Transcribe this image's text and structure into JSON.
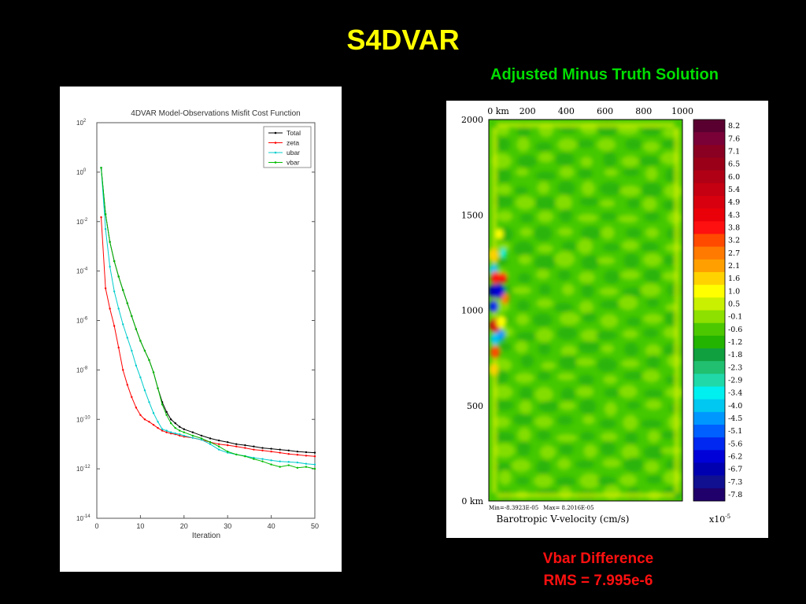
{
  "slide_title": "S4DVAR",
  "right_heading": "Adjusted Minus Truth Solution",
  "caption_line1": "Vbar Difference",
  "caption_line2": "RMS = 7.995e-6",
  "colors": {
    "background": "#000000",
    "title": "#ffff00",
    "heading": "#00dd00",
    "caption": "#ff1010"
  },
  "chart_data": [
    {
      "type": "line",
      "title": "4DVAR Model-Observations Misfit Cost Function",
      "xlabel": "Iteration",
      "ylabel": "",
      "yscale": "log",
      "xlim": [
        0,
        50
      ],
      "ylim": [
        1e-14,
        100.0
      ],
      "x_ticks": [
        "0",
        "10",
        "20",
        "30",
        "40",
        "50"
      ],
      "y_ticks": [
        "10-14",
        "10-12",
        "10-10",
        "10-8",
        "10-6",
        "10-4",
        "10-2",
        "100",
        "102"
      ],
      "legend_position": "top-right",
      "series": [
        {
          "name": "Total",
          "color": "#000000",
          "x": [
            1,
            2,
            3,
            4,
            5,
            6,
            7,
            8,
            9,
            10,
            11,
            12,
            13,
            14,
            15,
            16,
            17,
            18,
            19,
            20,
            22,
            24,
            26,
            28,
            30,
            32,
            34,
            36,
            38,
            40,
            42,
            44,
            46,
            48,
            50
          ],
          "y": [
            1.5,
            0.02,
            0.0015,
            0.00025,
            6e-05,
            1.7e-05,
            5e-06,
            1.5e-06,
            4.5e-07,
            1.5e-07,
            6e-08,
            2.5e-08,
            8e-09,
            1.8e-09,
            5e-10,
            2e-10,
            1e-10,
            7e-11,
            5e-11,
            4e-11,
            3e-11,
            2.2e-11,
            1.7e-11,
            1.4e-11,
            1.2e-11,
            1e-11,
            9e-12,
            8e-12,
            7e-12,
            6.5e-12,
            6e-12,
            5.5e-12,
            5e-12,
            4.7e-12,
            4.5e-12
          ]
        },
        {
          "name": "zeta",
          "color": "#ff0000",
          "x": [
            1,
            2,
            3,
            4,
            5,
            6,
            7,
            8,
            9,
            10,
            11,
            12,
            13,
            14,
            15,
            16,
            17,
            18,
            19,
            20,
            22,
            24,
            26,
            28,
            30,
            32,
            34,
            36,
            38,
            40,
            42,
            44,
            46,
            48,
            50
          ],
          "y": [
            0.015,
            2e-05,
            3e-06,
            6e-07,
            8e-08,
            1e-08,
            2.5e-09,
            8e-10,
            3e-10,
            1.5e-10,
            1e-10,
            8e-11,
            6e-11,
            4.5e-11,
            3.5e-11,
            3e-11,
            2.7e-11,
            2.5e-11,
            2.2e-11,
            2e-11,
            1.8e-11,
            1.5e-11,
            1.2e-11,
            1e-11,
            9e-12,
            8e-12,
            7e-12,
            6e-12,
            5.5e-12,
            5e-12,
            4.5e-12,
            4e-12,
            3.7e-12,
            3.4e-12,
            3.2e-12
          ]
        },
        {
          "name": "ubar",
          "color": "#00cccc",
          "x": [
            1,
            2,
            3,
            4,
            5,
            6,
            7,
            8,
            9,
            10,
            11,
            12,
            13,
            14,
            15,
            16,
            17,
            18,
            19,
            20,
            22,
            24,
            26,
            28,
            30,
            32,
            34,
            36,
            38,
            40,
            42,
            44,
            46,
            48,
            50
          ],
          "y": [
            1.5,
            0.005,
            0.00015,
            1.5e-05,
            3e-06,
            7e-07,
            2e-07,
            6e-08,
            1.5e-08,
            5e-09,
            1.5e-09,
            5e-10,
            1.8e-10,
            8e-11,
            4e-11,
            3.5e-11,
            3e-11,
            2.7e-11,
            2.5e-11,
            2.2e-11,
            1.8e-11,
            1.5e-11,
            1e-11,
            6e-12,
            4.5e-12,
            3.8e-12,
            3.3e-12,
            2.8e-12,
            2.5e-12,
            2.2e-12,
            2e-12,
            1.9e-12,
            1.8e-12,
            1.6e-12,
            1.5e-12
          ]
        },
        {
          "name": "vbar",
          "color": "#00bb00",
          "x": [
            1,
            2,
            3,
            4,
            5,
            6,
            7,
            8,
            9,
            10,
            11,
            12,
            13,
            14,
            15,
            16,
            17,
            18,
            19,
            20,
            22,
            24,
            26,
            28,
            30,
            32,
            34,
            36,
            38,
            40,
            42,
            44,
            46,
            48,
            50
          ],
          "y": [
            1.5,
            0.02,
            0.0015,
            0.00025,
            6e-05,
            1.7e-05,
            5e-06,
            1.5e-06,
            4.5e-07,
            1.5e-07,
            6e-08,
            2.5e-08,
            8e-09,
            1.8e-09,
            4e-10,
            1.5e-10,
            7e-11,
            4.5e-11,
            3.5e-11,
            3e-11,
            2.2e-11,
            1.7e-11,
            1.2e-11,
            8e-12,
            5e-12,
            3.8e-12,
            3.2e-12,
            2.5e-12,
            2e-12,
            1.5e-12,
            1.2e-12,
            1.4e-12,
            1.1e-12,
            1.2e-12,
            1e-12
          ]
        }
      ]
    },
    {
      "type": "heatmap",
      "title": "Barotropic V-velocity (cm/s)",
      "xlabel": "Barotropic V-velocity (cm/s)",
      "x_ticks": [
        "0 km",
        "200",
        "400",
        "600",
        "800",
        "1000"
      ],
      "y_ticks": [
        "0 km",
        "500",
        "1000",
        "1500",
        "2000"
      ],
      "xlim": [
        0,
        1000
      ],
      "ylim": [
        0,
        2000
      ],
      "min_label": "Min=-8.3923E-05",
      "max_label": "Max= 8.2016E-05",
      "scale_label": "x10",
      "scale_exponent": "-5",
      "colorbar_labels": [
        "8.2",
        "7.6",
        "7.1",
        "6.5",
        "6.0",
        "5.4",
        "4.9",
        "4.3",
        "3.8",
        "3.2",
        "2.7",
        "2.1",
        "1.6",
        "1.0",
        "0.5",
        "-0.1",
        "-0.6",
        "-1.2",
        "-1.8",
        "-2.3",
        "-2.9",
        "-3.4",
        "-4.0",
        "-4.5",
        "-5.1",
        "-5.6",
        "-6.2",
        "-6.7",
        "-7.3",
        "-7.8"
      ],
      "colorbar_colors": [
        "#5a0030",
        "#7a0038",
        "#8a0022",
        "#9a0018",
        "#b00015",
        "#c40012",
        "#d8000e",
        "#ea0008",
        "#ff1010",
        "#ff4a00",
        "#ff7a00",
        "#ffa000",
        "#ffd200",
        "#ffff00",
        "#c8f000",
        "#8ee000",
        "#4cc800",
        "#22b400",
        "#10a040",
        "#20c070",
        "#20d8a8",
        "#00f0f0",
        "#00c8f0",
        "#0098ff",
        "#0060ff",
        "#0028f0",
        "#0000d8",
        "#0000b0",
        "#101090",
        "#20006a"
      ]
    }
  ]
}
